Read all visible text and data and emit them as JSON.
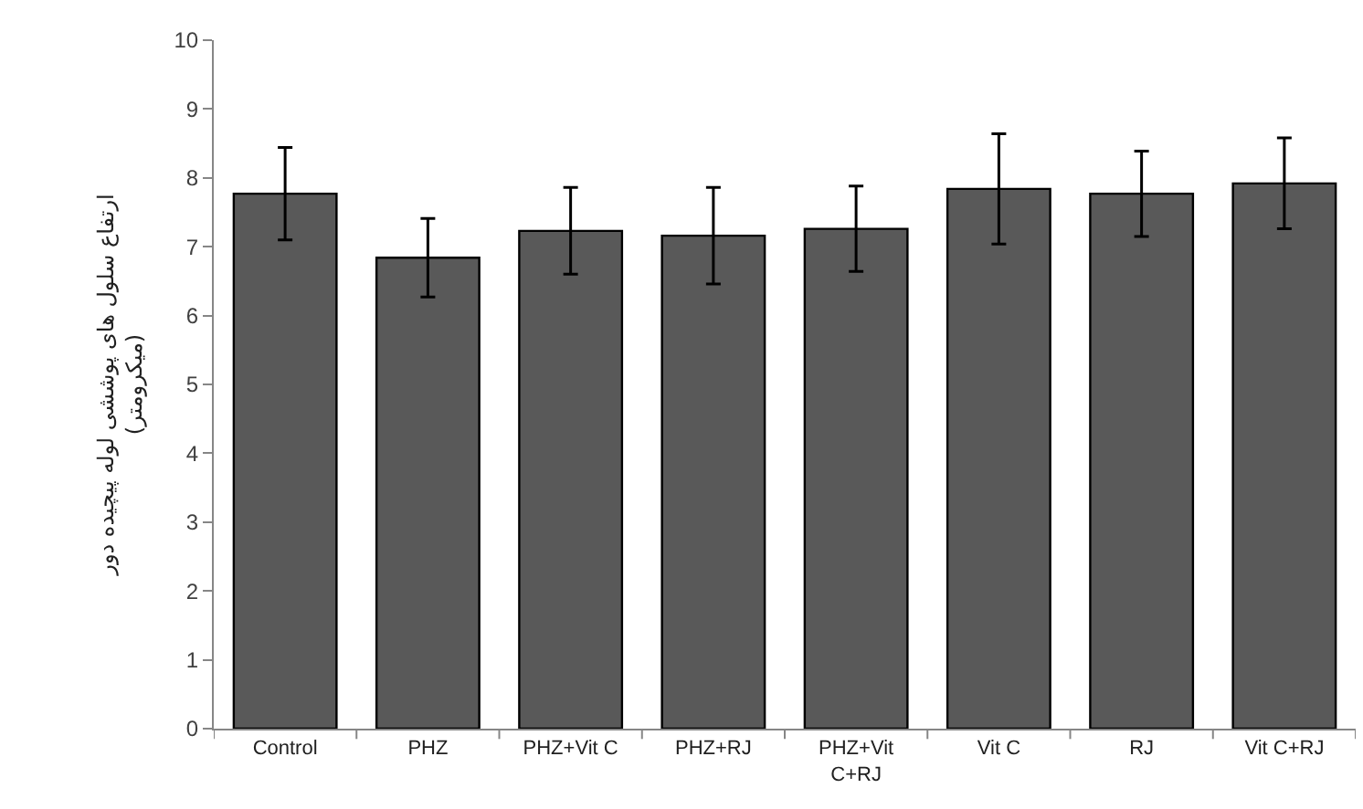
{
  "chart_data": {
    "type": "bar",
    "ylabel": "ارتفاع سلول های پوششی لوله پیچیده دور (میکرومتر)",
    "categories": [
      "Control",
      "PHZ",
      "PHZ+Vit C",
      "PHZ+RJ",
      "PHZ+Vit C+RJ",
      "Vit C",
      "RJ",
      "Vit C+RJ"
    ],
    "values": [
      7.77,
      6.84,
      7.23,
      7.16,
      7.26,
      7.84,
      7.77,
      7.92
    ],
    "errors": [
      0.67,
      0.57,
      0.63,
      0.7,
      0.62,
      0.8,
      0.62,
      0.66
    ],
    "color": "#595959",
    "ylim": [
      0,
      10
    ],
    "yticks": [
      0,
      1,
      2,
      3,
      4,
      5,
      6,
      7,
      8,
      9,
      10
    ]
  }
}
